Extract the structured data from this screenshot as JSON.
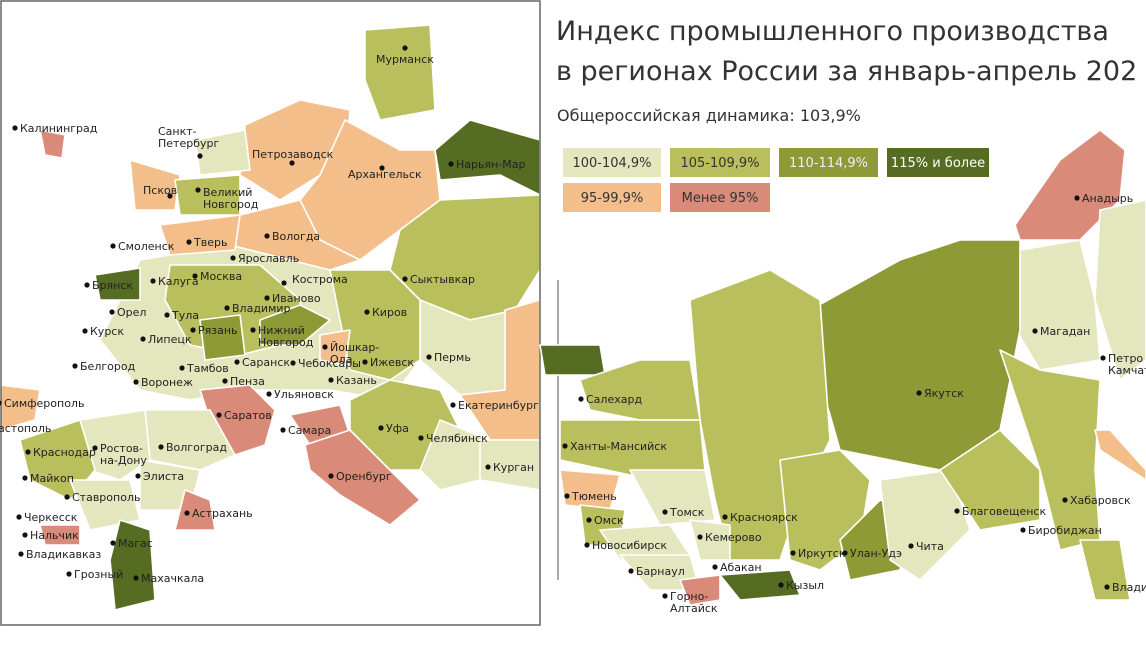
{
  "header": {
    "title_lines": [
      "Индекс промышленного производства",
      "в регионах России за январь-апрель 202"
    ],
    "subtitle": "Общероссийская динамика: 103,9%"
  },
  "legend": {
    "items": [
      {
        "label": "100-104,9%",
        "color": "#e4e7bd",
        "text_color": "#333"
      },
      {
        "label": "105-109,9%",
        "color": "#b9bf5d",
        "text_color": "#333"
      },
      {
        "label": "110-114,9%",
        "color": "#8d9a36",
        "text_color": "#eef"
      },
      {
        "label": "115% и более",
        "color": "#566c22",
        "text_color": "#fff"
      },
      {
        "label": "95-99,9%",
        "color": "#f3be89",
        "text_color": "#333"
      },
      {
        "label": "Менее 95%",
        "color": "#da8a78",
        "text_color": "#333"
      }
    ]
  },
  "cities": [
    [
      "Мурманск"
    ],
    [
      "Калининград"
    ],
    [
      "Санкт-",
      "Петербург"
    ],
    [
      "Петрозаводск"
    ],
    [
      "Архангельск"
    ],
    [
      "Нарьян-Мар"
    ],
    [
      "Псков"
    ],
    [
      "Великий",
      "Новгород"
    ],
    [
      "Вологда"
    ],
    [
      "Смоленск"
    ],
    [
      "Тверь"
    ],
    [
      "Ярославль"
    ],
    [
      "Кострома"
    ],
    [
      "Сыктывкар"
    ],
    [
      "Брянск"
    ],
    [
      "Калуга"
    ],
    [
      "Москва"
    ],
    [
      "Иваново"
    ],
    [
      "Орел"
    ],
    [
      "Тула"
    ],
    [
      "Владимир"
    ],
    [
      "Киров"
    ],
    [
      "Курск"
    ],
    [
      "Рязань"
    ],
    [
      "Нижний",
      "Новгород"
    ],
    [
      "Йошкар-",
      "Ола"
    ],
    [
      "Липецк"
    ],
    [
      "Саранск"
    ],
    [
      "Чебоксары"
    ],
    [
      "Ижевск"
    ],
    [
      "Пермь"
    ],
    [
      "Белгород"
    ],
    [
      "Воронеж"
    ],
    [
      "Тамбов"
    ],
    [
      "Пенза"
    ],
    [
      "Казань"
    ],
    [
      "Ульяновск"
    ],
    [
      "Симферополь"
    ],
    [
      "астополь"
    ],
    [
      "Екатеринбург"
    ],
    [
      "Саратов"
    ],
    [
      "Самара"
    ],
    [
      "Уфа"
    ],
    [
      "Волгоград"
    ],
    [
      "Ростов-",
      "на-Дону"
    ],
    [
      "Краснодар"
    ],
    [
      "Челябинск"
    ],
    [
      "Майкоп"
    ],
    [
      "Элиста"
    ],
    [
      "Курган"
    ],
    [
      "Оренбург"
    ],
    [
      "Ставрополь"
    ],
    [
      "Астрахань"
    ],
    [
      "Черкесск"
    ],
    [
      "Нальчик"
    ],
    [
      "Магас"
    ],
    [
      "Владикавказ"
    ],
    [
      "Грозный"
    ],
    [
      "Махачкала"
    ],
    [
      "Анадырь"
    ],
    [
      "Магадан"
    ],
    [
      "Петро",
      "Камчат"
    ],
    [
      "Якутск"
    ],
    [
      "Салехард"
    ],
    [
      "Ханты-Мансийск"
    ],
    [
      "Тюмень"
    ],
    [
      "Томск"
    ],
    [
      "Омск"
    ],
    [
      "Красноярск"
    ],
    [
      "Новосибирск"
    ],
    [
      "Кемерово"
    ],
    [
      "Благовещенск"
    ],
    [
      "Хабаровск"
    ],
    [
      "Биробиджан"
    ],
    [
      "Иркутск"
    ],
    [
      "Улан-Удэ"
    ],
    [
      "Чита"
    ],
    [
      "Абакан"
    ],
    [
      "Барнаул"
    ],
    [
      "Кызыл"
    ],
    [
      "Горно-",
      "Алтайск"
    ],
    [
      "Влади"
    ]
  ]
}
